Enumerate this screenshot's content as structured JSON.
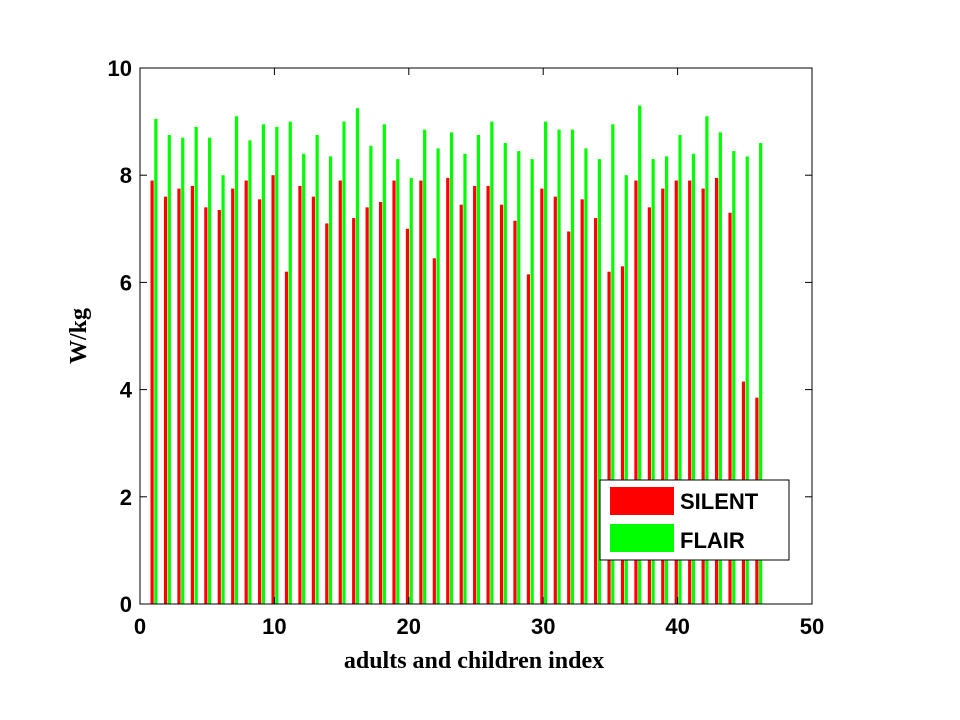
{
  "chart_data": {
    "type": "bar",
    "xlabel": "adults and children index",
    "ylabel": "W/kg",
    "xlim": [
      0,
      50
    ],
    "ylim": [
      0,
      10
    ],
    "xticks": [
      0,
      10,
      20,
      30,
      40,
      50
    ],
    "yticks": [
      0,
      2,
      4,
      6,
      8,
      10
    ],
    "grid": false,
    "legend_position": "bottom-right",
    "x": [
      1,
      2,
      3,
      4,
      5,
      6,
      7,
      8,
      9,
      10,
      11,
      12,
      13,
      14,
      15,
      16,
      17,
      18,
      19,
      20,
      21,
      22,
      23,
      24,
      25,
      26,
      27,
      28,
      29,
      30,
      31,
      32,
      33,
      34,
      35,
      36,
      37,
      38,
      39,
      40,
      41,
      42,
      43,
      44,
      45,
      46
    ],
    "series": [
      {
        "name": "SILENT",
        "color": "#ff0000",
        "values": [
          7.9,
          7.6,
          7.75,
          7.8,
          7.4,
          7.35,
          7.75,
          7.9,
          7.55,
          8.0,
          6.2,
          7.8,
          7.6,
          7.1,
          7.9,
          7.2,
          7.4,
          7.5,
          7.9,
          7.0,
          7.9,
          6.45,
          7.95,
          7.45,
          7.8,
          7.8,
          7.45,
          7.15,
          6.15,
          7.75,
          7.6,
          6.95,
          7.55,
          7.2,
          6.2,
          6.3,
          7.9,
          7.4,
          7.75,
          7.9,
          7.9,
          7.75,
          7.95,
          7.3,
          4.15,
          3.85
        ]
      },
      {
        "name": "FLAIR",
        "color": "#00ff00",
        "values": [
          9.05,
          8.75,
          8.7,
          8.9,
          8.7,
          8.0,
          9.1,
          8.65,
          8.95,
          8.9,
          9.0,
          8.4,
          8.75,
          8.35,
          9.0,
          9.25,
          8.55,
          8.95,
          8.3,
          7.95,
          8.85,
          8.5,
          8.8,
          8.4,
          8.75,
          9.0,
          8.6,
          8.45,
          8.3,
          9.0,
          8.85,
          8.85,
          8.5,
          8.3,
          8.95,
          8.0,
          9.3,
          8.3,
          8.35,
          8.75,
          8.4,
          9.1,
          8.8,
          8.45,
          8.35,
          8.6
        ]
      }
    ]
  }
}
